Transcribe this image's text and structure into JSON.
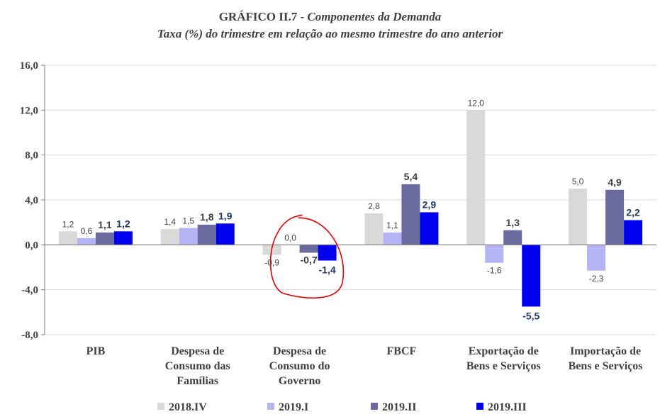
{
  "chart_data": {
    "type": "bar",
    "title_prefix": "GRÁFICO II.7 - ",
    "title_main": "Componentes da Demanda",
    "subtitle": "Taxa (%) do trimestre em relação ao mesmo trimestre do ano anterior",
    "categories": [
      [
        "PIB"
      ],
      [
        "Despesa de",
        "Consumo das",
        "Famílias"
      ],
      [
        "Despesa de",
        "Consumo do",
        "Governo"
      ],
      [
        "FBCF"
      ],
      [
        "Exportação de",
        "Bens e Serviços"
      ],
      [
        "Importação de",
        "Bens e Serviços"
      ]
    ],
    "series": [
      {
        "name": "2018.IV",
        "color": "#d9d9d9",
        "values": [
          1.2,
          1.4,
          -0.9,
          2.8,
          12.0,
          5.0
        ],
        "labels": [
          "1,2",
          "1,4",
          "-0,9",
          "2,8",
          "12,0",
          "5,0"
        ]
      },
      {
        "name": "2019.I",
        "color": "#b4b4f5",
        "values": [
          0.6,
          1.5,
          0.0,
          1.1,
          -1.6,
          -2.3
        ],
        "labels": [
          "0,6",
          "1,5",
          "0,0",
          "1,1",
          "-1,6",
          "-2,3"
        ]
      },
      {
        "name": "2019.II",
        "color": "#6a6a9e",
        "values": [
          1.1,
          1.8,
          -0.7,
          5.4,
          1.3,
          4.9
        ],
        "labels": [
          "1,1",
          "1,8",
          "-0,7",
          "5,4",
          "1,3",
          "4,9"
        ]
      },
      {
        "name": "2019.III",
        "color": "#0000ee",
        "values": [
          1.2,
          1.9,
          -1.4,
          2.9,
          -5.5,
          2.2
        ],
        "labels": [
          "1,2",
          "1,9",
          "-1,4",
          "2,9",
          "-5,5",
          "2,2"
        ]
      }
    ],
    "yticks": [
      "16,0",
      "12,0",
      "8,0",
      "4,0",
      "0,0",
      "-4,0",
      "-8,0"
    ],
    "ytick_values": [
      16,
      12,
      8,
      4,
      0,
      -4,
      -8
    ],
    "ylim": [
      -8,
      16
    ],
    "grid": true,
    "legend_position": "bottom",
    "annotation": "red circle highlighting Despesa de Consumo do Governo"
  }
}
